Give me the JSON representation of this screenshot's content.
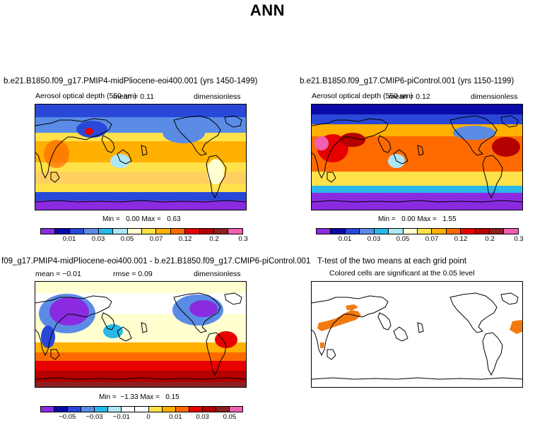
{
  "title": "ANN",
  "panels": [
    {
      "id": "p1",
      "title": "b.e21.B1850.f09_g17.PMIP4-midPliocene-eoi400.001 (yrs 1450-1499)",
      "variable": "Aerosol optical depth (550 nm)",
      "mean_label": "mean =",
      "mean_value": "0.11",
      "units": "dimensionless",
      "min_label": "Min =",
      "min_value": "0.00",
      "max_label": "Max =",
      "max_value": "0.63"
    },
    {
      "id": "p2",
      "title": "b.e21.B1850.f09_g17.CMIP6-piControl.001 (yrs 1150-1199)",
      "variable": "Aerosol optical depth (550 nm)",
      "mean_label": "mean =",
      "mean_value": "0.12",
      "units": "dimensionless",
      "min_label": "Min =",
      "min_value": "0.00",
      "max_label": "Max =",
      "max_value": "1.55"
    },
    {
      "id": "p3",
      "title": "f09_g17.PMIP4-midPliocene-eoi400.001 - b.e21.B1850.f09_g17.CMIP6-piControl.001",
      "mean_label": "mean =",
      "mean_value": "−0.01",
      "rmse_label": "rmse =",
      "rmse_value": "0.09",
      "units": "dimensionless",
      "min_label": "Min =",
      "min_value": "−1.33",
      "max_label": "Max =",
      "max_value": "0.15"
    },
    {
      "id": "p4",
      "title": "T-test of the two means at each grid point",
      "subtitle": "Colored cells are significant at the 0.05 level"
    }
  ],
  "colorbars": {
    "abs": {
      "colors": [
        "#8a2be2",
        "#0a0aa8",
        "#2a48d8",
        "#5a8ce6",
        "#2ab8ea",
        "#aee6f6",
        "#ffffd0",
        "#ffe24a",
        "#ffb000",
        "#ff6a00",
        "#e80000",
        "#b40000",
        "#8c2020",
        "#f060b0"
      ],
      "labels": [
        "0.01",
        "0.03",
        "0.05",
        "0.07",
        "0.12",
        "0.2",
        "0.3"
      ]
    },
    "diff": {
      "colors": [
        "#8a2be2",
        "#0a0aa8",
        "#2a48d8",
        "#5a8ce6",
        "#2ab8ea",
        "#aee6f6",
        "#ffffff",
        "#ffffff",
        "#ffe24a",
        "#ffb000",
        "#ff6a00",
        "#e80000",
        "#b40000",
        "#8c2020",
        "#f060b0"
      ],
      "labels": [
        "−0.05",
        "−0.03",
        "−0.01",
        "0",
        "0.01",
        "0.03",
        "0.05"
      ]
    }
  },
  "legend_colors": {
    "significant": "#f07a10",
    "land_outline": "#000000"
  }
}
